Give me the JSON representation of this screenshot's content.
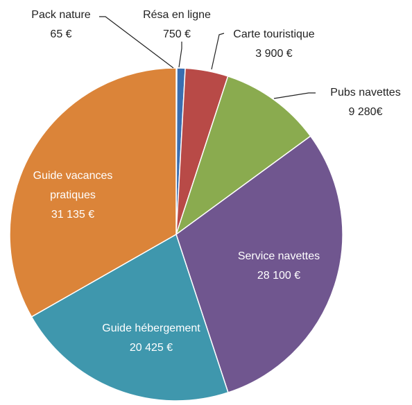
{
  "chart_data": {
    "type": "pie",
    "categories": [
      "Pack nature",
      "Résa en ligne",
      "Carte touristique",
      "Pubs navettes",
      "Service navettes",
      "Guide hébergement",
      "Guide vacances pratiques"
    ],
    "values": [
      65,
      750,
      3900,
      9280,
      28100,
      20425,
      31135
    ],
    "value_labels": [
      "65 €",
      "750 €",
      "3 900 €",
      "9 280€",
      "28 100 €",
      "20 425 €",
      "31 135 €"
    ],
    "colors": [
      "#e8e8e8",
      "#3a6eb0",
      "#b84a47",
      "#8aab4f",
      "#70568f",
      "#3f97ad",
      "#db8439"
    ]
  }
}
